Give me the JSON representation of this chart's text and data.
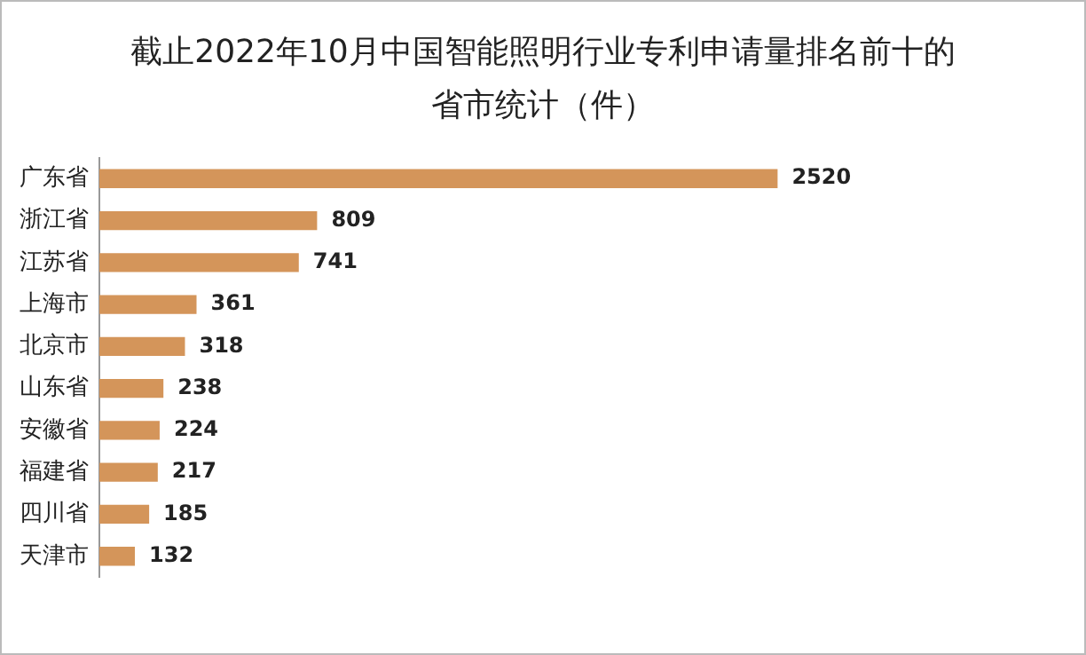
{
  "chart_data": {
    "type": "bar",
    "orientation": "horizontal",
    "title": "截止2022年10月中国智能照明行业专利申请量排名前十的省市统计（件）",
    "categories": [
      "广东省",
      "浙江省",
      "江苏省",
      "上海市",
      "北京市",
      "山东省",
      "安徽省",
      "福建省",
      "四川省",
      "天津市"
    ],
    "values": [
      2520,
      809,
      741,
      361,
      318,
      238,
      224,
      217,
      185,
      132
    ],
    "color": "#d4955a",
    "data_labels": true,
    "legend": false
  }
}
